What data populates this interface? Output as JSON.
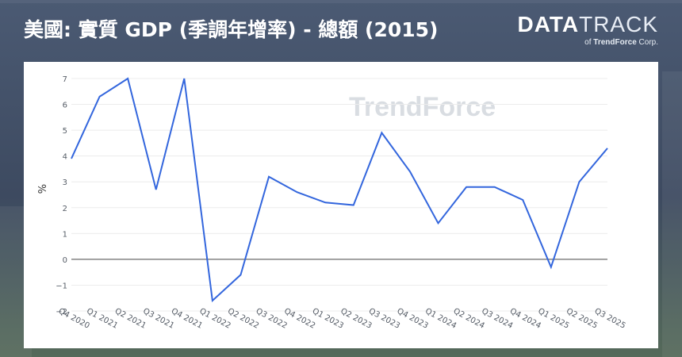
{
  "header": {
    "title": "美國: 實質 GDP (季調年增率) - 總額 (2015)"
  },
  "logo": {
    "brand_bold": "DATA",
    "brand_light": "TRACK",
    "sub_prefix": "of",
    "sub_brand": "TrendForce",
    "sub_suffix": "Corp.",
    "watermark": "TrendForce"
  },
  "chart_data": {
    "type": "line",
    "title": "美國: 實質 GDP (季調年增率) - 總額 (2015)",
    "xlabel": "",
    "ylabel": "%",
    "ylim": [
      -2,
      7
    ],
    "yticks": [
      -2,
      -1,
      0,
      1,
      2,
      3,
      4,
      5,
      6,
      7
    ],
    "y_tick_labels": [
      "−2",
      "−1",
      "0",
      "1",
      "2",
      "3",
      "4",
      "5",
      "6",
      "7"
    ],
    "grid": true,
    "categories": [
      "Q4 2020",
      "Q1 2021",
      "Q2 2021",
      "Q3 2021",
      "Q4 2021",
      "Q1 2022",
      "Q2 2022",
      "Q3 2022",
      "Q4 2022",
      "Q1 2023",
      "Q2 2023",
      "Q3 2023",
      "Q4 2023",
      "Q1 2024",
      "Q2 2024",
      "Q3 2024",
      "Q4 2024",
      "Q1 2025",
      "Q2 2025",
      "Q3 2025"
    ],
    "series": [
      {
        "color": "#3366dd",
        "values": [
          3.9,
          6.3,
          7.0,
          2.7,
          7.0,
          -1.6,
          -0.6,
          3.2,
          2.6,
          2.2,
          2.1,
          4.9,
          3.4,
          1.4,
          2.8,
          2.8,
          2.3,
          -0.3,
          3.0,
          4.3
        ]
      }
    ]
  }
}
